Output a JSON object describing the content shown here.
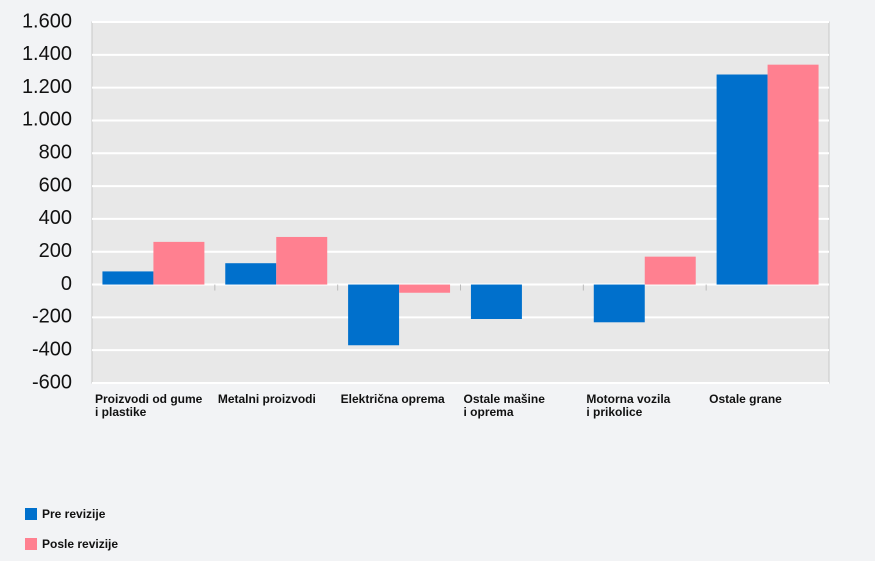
{
  "chart_data": {
    "type": "bar",
    "categories": [
      "Proizvodi od gume\ni plastike",
      "Metalni proizvodi",
      "Električna oprema",
      "Ostale mašine\ni oprema",
      "Motorna vozila\ni prikolice",
      "Ostale grane"
    ],
    "series": [
      {
        "name": "Pre revizije",
        "color": "#0070cc",
        "values": [
          80,
          130,
          -370,
          -210,
          -230,
          1280
        ]
      },
      {
        "name": "Posle revizije",
        "color": "#ff8090",
        "values": [
          260,
          290,
          -50,
          null,
          170,
          1340
        ]
      }
    ],
    "ylim": [
      -600,
      1600
    ],
    "yticks": [
      -600,
      -400,
      -200,
      0,
      200,
      400,
      600,
      800,
      {
        "value": 1000,
        "label": "1.000"
      },
      {
        "value": 1200,
        "label": "1.200"
      },
      {
        "value": 1400,
        "label": "1.400"
      },
      {
        "value": 1600,
        "label": "1.600"
      }
    ],
    "grid": true
  }
}
